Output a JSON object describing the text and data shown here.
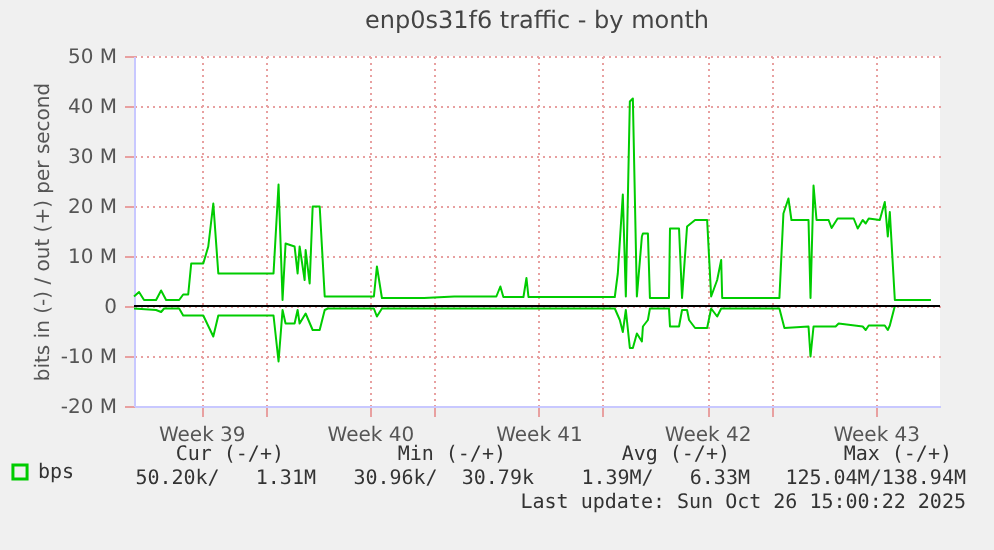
{
  "chart_data": {
    "type": "line",
    "title": "enp0s31f6 traffic - by month",
    "ylabel": "bits in (-) / out (+) per second",
    "xlim": [
      "2025-09-23T13:00",
      "2025-10-27T00:00"
    ],
    "xticks": [
      {
        "value": "2025-09-26T08:00",
        "label": "Week 39"
      },
      {
        "value": "2025-09-29T00:00",
        "label": null
      },
      {
        "value": "2025-10-03T08:00",
        "label": "Week 40"
      },
      {
        "value": "2025-10-06T00:00",
        "label": null
      },
      {
        "value": "2025-10-10T08:00",
        "label": "Week 41"
      },
      {
        "value": "2025-10-13T00:00",
        "label": null
      },
      {
        "value": "2025-10-17T08:00",
        "label": "Week 42"
      },
      {
        "value": "2025-10-20T00:00",
        "label": null
      },
      {
        "value": "2025-10-24T08:00",
        "label": "Week 43"
      }
    ],
    "ylim": [
      -20,
      50
    ],
    "yticks": [
      {
        "value": -20,
        "label": "-20 M"
      },
      {
        "value": -10,
        "label": "-10 M"
      },
      {
        "value": 0,
        "label": "0"
      },
      {
        "value": 10,
        "label": "10 M"
      },
      {
        "value": 20,
        "label": "20 M"
      },
      {
        "value": 30,
        "label": "30 M"
      },
      {
        "value": 40,
        "label": "40 M"
      },
      {
        "value": 50,
        "label": "50 M"
      }
    ],
    "grid": true,
    "legend": "bottom left",
    "ref_lines": [
      {
        "axis": "y",
        "value": 0,
        "color": "#000000"
      }
    ],
    "series": [
      {
        "name": "bps",
        "color": "#00cc00",
        "x": [
          "2025-09-23T13:00",
          "2025-09-23T18:00",
          "2025-09-23T23:00",
          "2025-09-24T11:00",
          "2025-09-24T16:00",
          "2025-09-24T21:00",
          "2025-09-25T10:00",
          "2025-09-25T14:00",
          "2025-09-25T19:00",
          "2025-09-25T22:00",
          "2025-09-26T10:00",
          "2025-09-26T15:00",
          "2025-09-26T20:00",
          "2025-09-27T01:00",
          "2025-09-29T08:00",
          "2025-09-29T13:00",
          "2025-09-29T17:00",
          "2025-09-29T20:00",
          "2025-09-30T05:00",
          "2025-09-30T08:00",
          "2025-09-30T10:00",
          "2025-09-30T15:00",
          "2025-09-30T16:00",
          "2025-09-30T20:00",
          "2025-09-30T23:00",
          "2025-10-01T06:00",
          "2025-10-01T11:00",
          "2025-10-03T12:00",
          "2025-10-03T15:00",
          "2025-10-03T20:00",
          "2025-10-05T14:00",
          "2025-10-06T20:00",
          "2025-10-08T14:00",
          "2025-10-08T18:00",
          "2025-10-08T21:00",
          "2025-10-09T17:00",
          "2025-10-09T20:00",
          "2025-10-09T22:00",
          "2025-10-13T12:00",
          "2025-10-13T15:00",
          "2025-10-13T20:00",
          "2025-10-13T23:00",
          "2025-10-14T03:00",
          "2025-10-14T06:00",
          "2025-10-14T10:00",
          "2025-10-14T15:00",
          "2025-10-14T16:00",
          "2025-10-14T21:00",
          "2025-10-14T23:00",
          "2025-10-15T18:00",
          "2025-10-15T19:00",
          "2025-10-16T04:00",
          "2025-10-16T07:00",
          "2025-10-16T12:00",
          "2025-10-16T20:00",
          "2025-10-17T08:00",
          "2025-10-17T12:00",
          "2025-10-17T18:00",
          "2025-10-17T22:00",
          "2025-10-17T23:00",
          "2025-10-20T08:00",
          "2025-10-20T12:00",
          "2025-10-20T17:00",
          "2025-10-20T20:00",
          "2025-10-21T13:00",
          "2025-10-21T15:00",
          "2025-10-21T18:00",
          "2025-10-21T21:00",
          "2025-10-22T09:00",
          "2025-10-22T12:00",
          "2025-10-22T18:00",
          "2025-10-23T10:00",
          "2025-10-23T14:00",
          "2025-10-23T19:00",
          "2025-10-23T22:00",
          "2025-10-24T01:00",
          "2025-10-24T12:00",
          "2025-10-24T17:00",
          "2025-10-24T20:00",
          "2025-10-24T22:00",
          "2025-10-25T03:00",
          "2025-10-26T15:00"
        ],
        "values": [
          1.9,
          2.8,
          1.2,
          1.2,
          3.1,
          1.2,
          1.2,
          2.3,
          2.3,
          8.5,
          8.5,
          11.9,
          20.5,
          6.5,
          6.5,
          24.3,
          1.2,
          12.5,
          11.9,
          6.5,
          11.9,
          5.2,
          11.2,
          4.5,
          19.9,
          19.9,
          1.9,
          1.9,
          7.9,
          1.6,
          1.6,
          1.9,
          1.9,
          3.9,
          1.8,
          1.8,
          5.6,
          1.8,
          1.8,
          6.5,
          22.3,
          1.9,
          40.9,
          41.5,
          1.9,
          13.9,
          14.5,
          14.5,
          1.6,
          1.6,
          15.5,
          15.5,
          1.6,
          15.9,
          17.2,
          17.2,
          1.9,
          5.2,
          9.2,
          1.6,
          1.6,
          18.5,
          21.5,
          17.2,
          17.2,
          1.6,
          24.1,
          17.2,
          17.2,
          15.6,
          17.5,
          17.5,
          15.5,
          17.2,
          16.5,
          17.5,
          17.2,
          20.8,
          13.9,
          18.8,
          1.2,
          1.2
        ]
      },
      {
        "color": "#00cc00",
        "x": [
          "2025-09-23T13:00",
          "2025-09-24T11:00",
          "2025-09-24T16:00",
          "2025-09-24T19:00",
          "2025-09-25T10:00",
          "2025-09-25T14:00",
          "2025-09-26T10:00",
          "2025-09-26T20:00",
          "2025-09-27T01:00",
          "2025-09-29T08:00",
          "2025-09-29T13:00",
          "2025-09-29T17:00",
          "2025-09-29T20:00",
          "2025-09-30T05:00",
          "2025-09-30T08:00",
          "2025-09-30T10:00",
          "2025-09-30T16:00",
          "2025-09-30T23:00",
          "2025-10-01T06:00",
          "2025-10-01T11:00",
          "2025-10-01T14:00",
          "2025-10-03T12:00",
          "2025-10-03T15:00",
          "2025-10-03T20:00",
          "2025-10-13T12:00",
          "2025-10-13T17:00",
          "2025-10-13T20:00",
          "2025-10-13T23:00",
          "2025-10-14T03:00",
          "2025-10-14T06:00",
          "2025-10-14T10:00",
          "2025-10-14T15:00",
          "2025-10-14T16:00",
          "2025-10-14T21:00",
          "2025-10-14T23:00",
          "2025-10-15T18:00",
          "2025-10-15T19:00",
          "2025-10-16T04:00",
          "2025-10-16T07:00",
          "2025-10-16T12:00",
          "2025-10-16T14:00",
          "2025-10-16T20:00",
          "2025-10-17T08:00",
          "2025-10-17T12:00",
          "2025-10-17T18:00",
          "2025-10-17T22:00",
          "2025-10-20T08:00",
          "2025-10-20T13:00",
          "2025-10-21T13:00",
          "2025-10-21T15:00",
          "2025-10-21T18:00",
          "2025-10-22T16:00",
          "2025-10-22T19:00",
          "2025-10-23T19:00",
          "2025-10-23T22:00",
          "2025-10-24T01:00",
          "2025-10-24T17:00",
          "2025-10-24T20:00",
          "2025-10-24T22:00",
          "2025-10-25T03:00",
          "2025-10-26T15:00"
        ],
        "values": [
          -0.5,
          -0.8,
          -1.2,
          -0.5,
          -0.5,
          -1.9,
          -1.9,
          -6.1,
          -1.9,
          -1.9,
          -11.1,
          -0.8,
          -3.5,
          -3.5,
          -0.8,
          -3.5,
          -1.5,
          -4.8,
          -4.8,
          -0.8,
          -0.5,
          -0.5,
          -2.1,
          -0.5,
          -0.5,
          -2.8,
          -5.2,
          -0.8,
          -8.4,
          -8.4,
          -5.5,
          -7.1,
          -4.1,
          -2.8,
          -0.5,
          -0.5,
          -4.1,
          -4.1,
          -0.8,
          -0.8,
          -2.8,
          -4.4,
          -4.4,
          -0.5,
          -2.1,
          -0.5,
          -0.5,
          -4.4,
          -4.1,
          -10.1,
          -4.1,
          -4.1,
          -3.5,
          -4.1,
          -4.8,
          -3.9,
          -3.9,
          -4.8,
          -3.9,
          0,
          0
        ]
      }
    ],
    "annotations": [
      "Cur (-/+)",
      "Min (-/+)",
      "Avg (-/+)",
      "Max (-/+)",
      "50.20k/   1.31M",
      "30.96k/  30.79k",
      "1.39M/   6.33M",
      "125.04M/138.94M",
      "Last update: Sun Oct 26 15:00:22 2025"
    ]
  }
}
